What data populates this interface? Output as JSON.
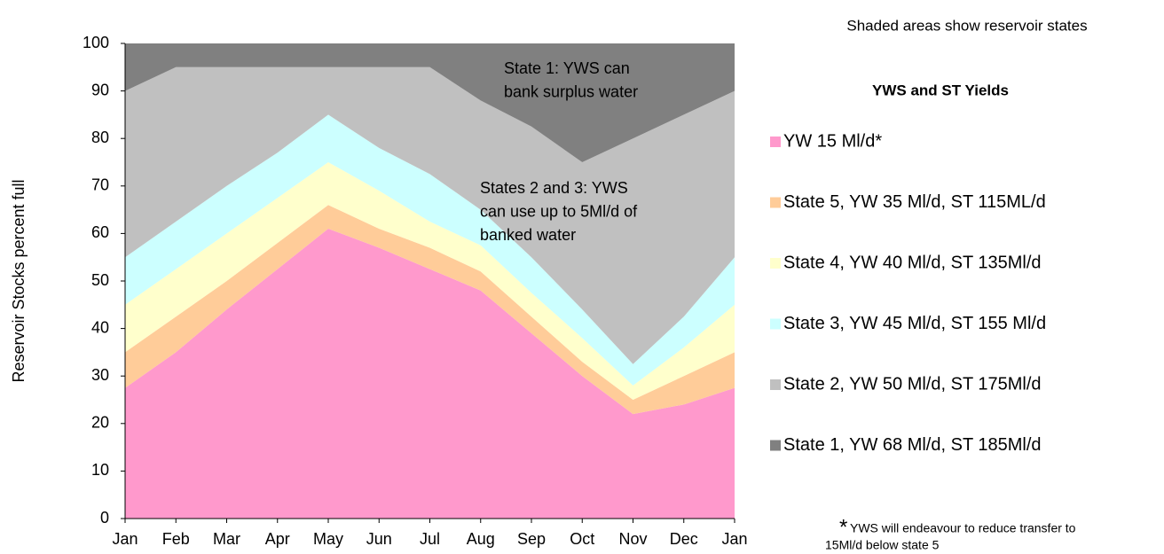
{
  "chart_data": {
    "type": "stacked-area",
    "header": "Shaded areas show reservoir states",
    "legend_title": "YWS  and ST Yields",
    "ylabel": "Reservoir Stocks percent full",
    "categories": [
      "Jan",
      "Feb",
      "Mar",
      "Apr",
      "May",
      "Jun",
      "Jul",
      "Aug",
      "Sep",
      "Oct",
      "Nov",
      "Dec",
      "Jan"
    ],
    "series": [
      {
        "name": "YW 15 Ml/d*",
        "color": "#ff99cc",
        "values": [
          27.5,
          35,
          44,
          52.5,
          61,
          57,
          52.5,
          48,
          39,
          30,
          22,
          24,
          27.5
        ]
      },
      {
        "name": "State 5, YW 35 Ml/d, ST 115ML/d",
        "color": "#ffcc99",
        "values": [
          7.5,
          7.5,
          6,
          5.5,
          5,
          4,
          4.5,
          4,
          3.5,
          3,
          3,
          6,
          7.5
        ]
      },
      {
        "name": "State 4, YW 40 Ml/d, ST 135Ml/d",
        "color": "#ffffcc",
        "values": [
          10,
          10,
          10,
          9.5,
          9,
          8,
          5.5,
          5.5,
          5,
          5,
          3,
          6,
          10
        ]
      },
      {
        "name": "State 3, YW 45 Ml/d, ST 155 Ml/d",
        "color": "#ccffff",
        "values": [
          10,
          10,
          10,
          9.5,
          10,
          9,
          10,
          7.5,
          7.5,
          6,
          4.5,
          6.5,
          10
        ]
      },
      {
        "name": "State 2, YW 50 Ml/d, ST 175Ml/d",
        "color": "#c0c0c0",
        "values": [
          35,
          32.5,
          25,
          18,
          10,
          17,
          22.5,
          23,
          27.5,
          31,
          47.5,
          42.5,
          35
        ]
      },
      {
        "name": "State 1, YW 68 Ml/d, ST 185Ml/d",
        "color": "#808080",
        "values": [
          10,
          5,
          5,
          5,
          5,
          5,
          5,
          12,
          17.5,
          25,
          20,
          15,
          10
        ]
      }
    ],
    "ylim": [
      0,
      100
    ],
    "yticks": [
      0,
      10,
      20,
      30,
      40,
      50,
      60,
      70,
      80,
      90,
      100
    ],
    "annotations": [
      [
        "State 1: YWS can",
        "bank surplus water"
      ],
      [
        "States 2 and 3: YWS",
        "can use up to 5Ml/d of",
        "banked water"
      ]
    ],
    "footnote_mark": "*",
    "footnote": [
      "YWS will endeavour to reduce transfer to",
      "15Ml/d below state 5"
    ]
  }
}
